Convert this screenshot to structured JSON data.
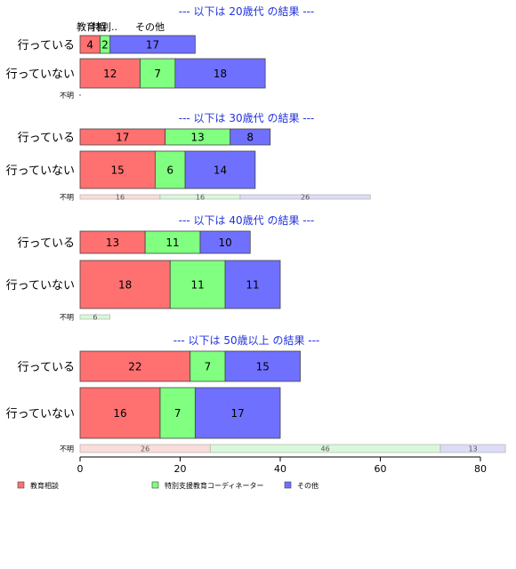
{
  "chart_data": {
    "type": "bar",
    "orientation": "horizontal",
    "stacked": true,
    "xlim": [
      0,
      80
    ],
    "x_ticks": [
      "0",
      "20",
      "40",
      "60",
      "80"
    ],
    "legend_placement": "bottom",
    "legend": [
      {
        "name": "教育相談",
        "color": "#ff7070"
      },
      {
        "name": "特別支援教育コーディネーター",
        "color": "#80ff80"
      },
      {
        "name": "その他",
        "color": "#7070ff"
      }
    ],
    "series_colors_light": [
      "#fadcd9",
      "#d9f7d9",
      "#dcdcf7"
    ],
    "top_labels": [
      "教育相",
      "特別..",
      "その他"
    ],
    "panels": [
      {
        "title": "--- 以下は 20歳代 の結果 ---",
        "rows": [
          {
            "label": "行っている",
            "values": [
              4,
              2,
              17
            ]
          },
          {
            "label": "行っていない",
            "values": [
              12,
              7,
              18
            ]
          },
          {
            "label": "不明",
            "values": [
              0,
              0,
              0
            ]
          }
        ]
      },
      {
        "title": "--- 以下は 30歳代 の結果 ---",
        "rows": [
          {
            "label": "行っている",
            "values": [
              17,
              13,
              8
            ]
          },
          {
            "label": "行っていない",
            "values": [
              15,
              6,
              14
            ]
          },
          {
            "label": "不明",
            "values": [
              16,
              16,
              26
            ]
          }
        ]
      },
      {
        "title": "--- 以下は 40歳代 の結果 ---",
        "rows": [
          {
            "label": "行っている",
            "values": [
              13,
              11,
              10
            ]
          },
          {
            "label": "行っていない",
            "values": [
              18,
              11,
              11
            ]
          },
          {
            "label": "不明",
            "values": [
              0,
              6,
              0
            ]
          }
        ]
      },
      {
        "title": "--- 以下は 50歳以上 の結果 ---",
        "rows": [
          {
            "label": "行っている",
            "values": [
              22,
              7,
              15
            ]
          },
          {
            "label": "行っていない",
            "values": [
              16,
              7,
              17
            ]
          },
          {
            "label": "不明",
            "values": [
              26,
              46,
              13
            ]
          }
        ]
      }
    ]
  }
}
